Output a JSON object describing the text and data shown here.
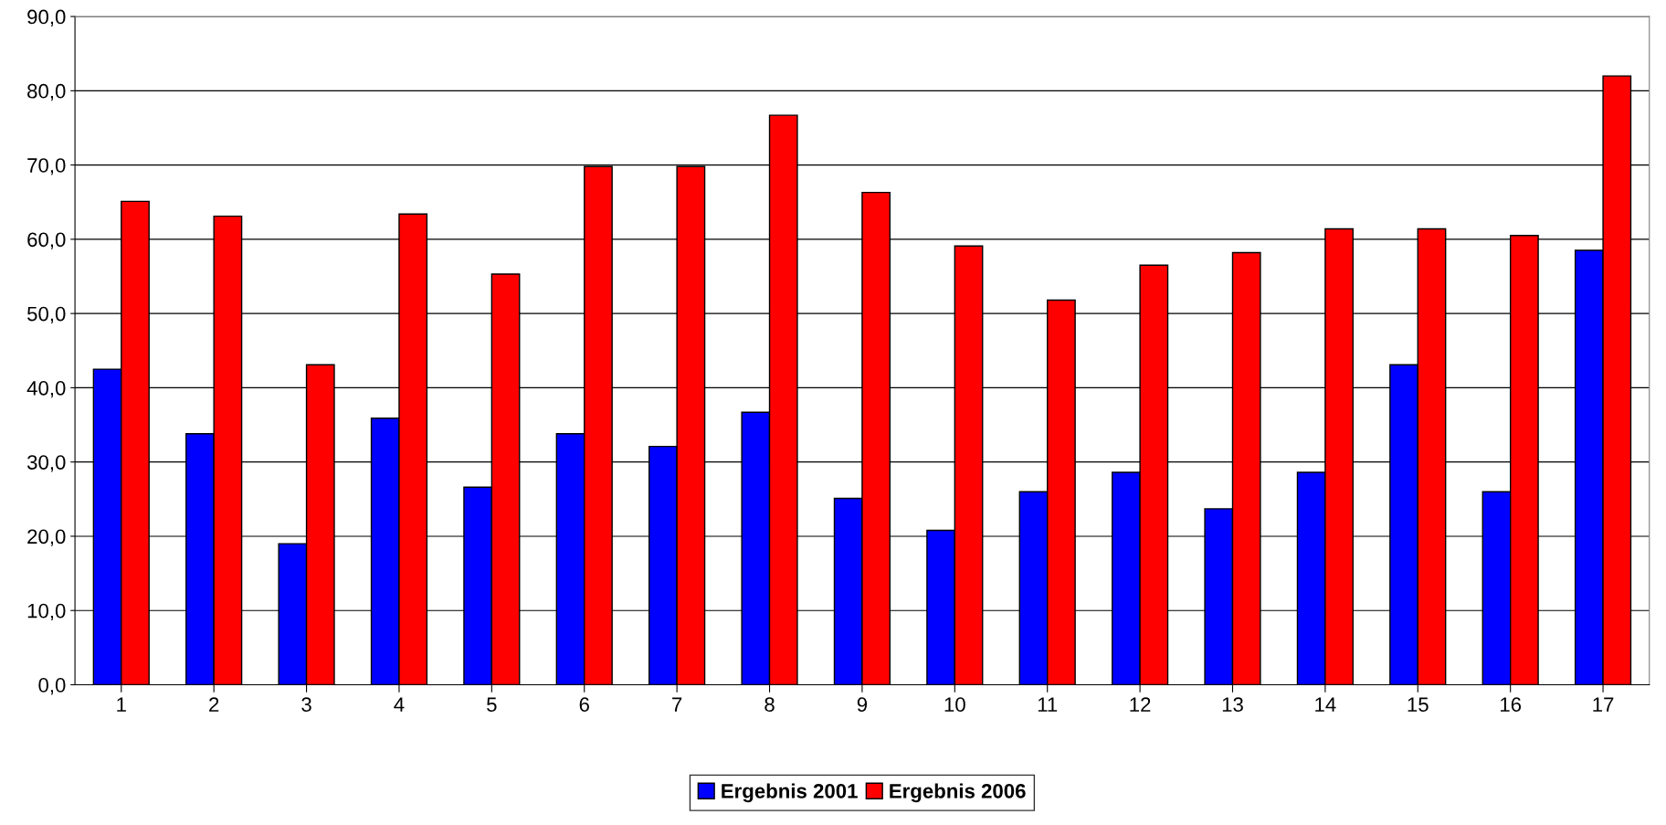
{
  "chart_data": {
    "type": "bar",
    "categories": [
      "1",
      "2",
      "3",
      "4",
      "5",
      "6",
      "7",
      "8",
      "9",
      "10",
      "11",
      "12",
      "13",
      "14",
      "15",
      "16",
      "17"
    ],
    "series": [
      {
        "name": "Ergebnis 2001",
        "color": "#0000ff",
        "values": [
          42.5,
          33.8,
          19.0,
          35.9,
          26.6,
          33.8,
          32.1,
          36.7,
          25.1,
          20.8,
          26.0,
          28.6,
          23.7,
          28.6,
          43.1,
          26.0,
          58.5
        ]
      },
      {
        "name": "Ergebnis 2006",
        "color": "#ff0000",
        "values": [
          65.1,
          63.1,
          43.1,
          63.4,
          55.3,
          69.8,
          69.8,
          76.7,
          66.3,
          59.1,
          51.8,
          56.5,
          58.2,
          61.4,
          61.4,
          60.5,
          82.0
        ]
      }
    ],
    "ylim": [
      0,
      90
    ],
    "yticks": [
      {
        "value": 0,
        "label": "0,0"
      },
      {
        "value": 10,
        "label": "10,0"
      },
      {
        "value": 20,
        "label": "20,0"
      },
      {
        "value": 30,
        "label": "30,0"
      },
      {
        "value": 40,
        "label": "40,0"
      },
      {
        "value": 50,
        "label": "50,0"
      },
      {
        "value": 60,
        "label": "60,0"
      },
      {
        "value": 70,
        "label": "70,0"
      },
      {
        "value": 80,
        "label": "80,0"
      },
      {
        "value": 90,
        "label": "90,0"
      }
    ],
    "grid": "y",
    "legend": "bottom"
  }
}
